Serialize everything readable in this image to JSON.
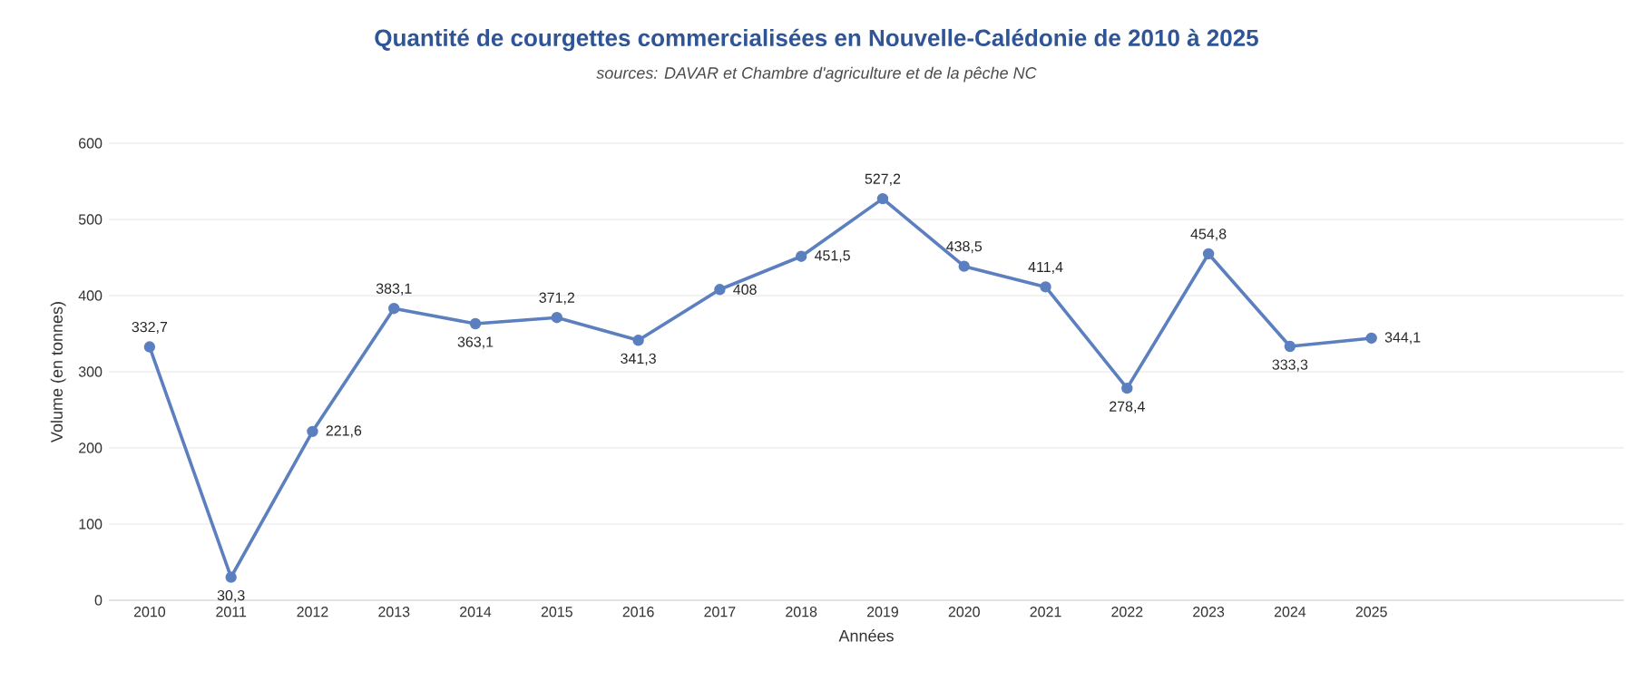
{
  "chart_data": {
    "type": "line",
    "title": "Quantité de courgettes commercialisées en Nouvelle-Calédonie de 2010 à 2025",
    "subtitle": "sources: DAVAR et Chambre d'agriculture et de la pêche NC",
    "xlabel": "Années",
    "ylabel": "Volume (en tonnes)",
    "categories": [
      "2010",
      "2011",
      "2012",
      "2013",
      "2014",
      "2015",
      "2016",
      "2017",
      "2018",
      "2019",
      "2020",
      "2021",
      "2022",
      "2023",
      "2024",
      "2025"
    ],
    "values": [
      332.7,
      30.3,
      221.6,
      383.1,
      363.1,
      371.2,
      341.3,
      408,
      451.5,
      527.2,
      438.5,
      411.4,
      278.4,
      454.8,
      333.3,
      344.1
    ],
    "value_labels": [
      "332,7",
      "30,3",
      "221,6",
      "383,1",
      "363,1",
      "371,2",
      "341,3",
      "408",
      "451,5",
      "527,2",
      "438,5",
      "411,4",
      "278,4",
      "454,8",
      "333,3",
      "344,1"
    ],
    "color": "#5b7fbf",
    "ylim": [
      0,
      600
    ],
    "yticks": [
      0,
      100,
      200,
      300,
      400,
      500,
      600
    ],
    "grid": "y",
    "marker": "circle",
    "line_style": "solid"
  }
}
